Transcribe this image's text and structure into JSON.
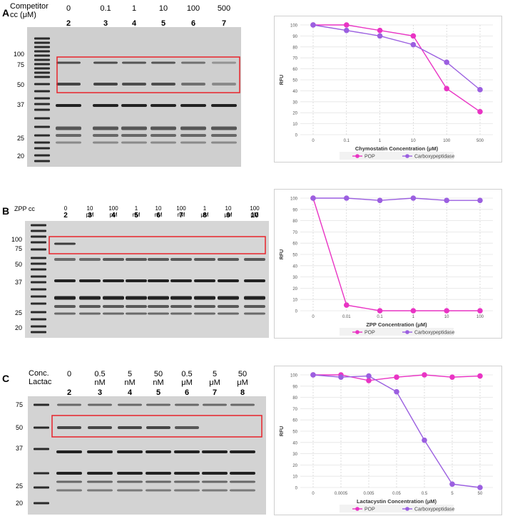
{
  "panels": [
    {
      "letter": "A",
      "header_label": [
        "Competitor",
        "cc (μM)"
      ],
      "column_labels": [
        [
          "0"
        ],
        [
          "0.1"
        ],
        [
          "1"
        ],
        [
          "10"
        ],
        [
          "100"
        ],
        [
          "500"
        ]
      ],
      "lane_numbers": [
        "2",
        "3",
        "4",
        "5",
        "6",
        "7"
      ],
      "mw_markers": [
        "100",
        "75",
        "50",
        "37",
        "25",
        "20"
      ],
      "highlight_color": "#e8232a"
    },
    {
      "letter": "B",
      "header_label": [
        "ZPP cc"
      ],
      "column_labels": [
        [
          "0"
        ],
        [
          "10",
          "pM"
        ],
        [
          "100",
          "pM"
        ],
        [
          "1",
          "nM"
        ],
        [
          "10",
          "nM"
        ],
        [
          "100",
          "nM"
        ],
        [
          "1",
          "μM"
        ],
        [
          "10",
          "μM"
        ],
        [
          "100",
          "μM"
        ]
      ],
      "lane_numbers": [
        "2",
        "3",
        "4",
        "5",
        "6",
        "7",
        "8",
        "9",
        "10"
      ],
      "mw_markers": [
        "100",
        "75",
        "50",
        "37",
        "25",
        "20"
      ],
      "highlight_color": "#e8232a"
    },
    {
      "letter": "C",
      "header_label": [
        "Conc.",
        "Lactac"
      ],
      "column_labels": [
        [
          "0"
        ],
        [
          "0.5",
          "nM"
        ],
        [
          "5",
          "nM"
        ],
        [
          "50",
          "nM"
        ],
        [
          "0.5",
          "μM"
        ],
        [
          "5",
          "μM"
        ],
        [
          "50",
          "μM"
        ]
      ],
      "lane_numbers": [
        "2",
        "3",
        "4",
        "5",
        "6",
        "7",
        "8"
      ],
      "mw_markers": [
        "75",
        "50",
        "37",
        "25",
        "20"
      ],
      "highlight_color": "#e8232a"
    }
  ],
  "chart_data": [
    {
      "type": "line",
      "categories": [
        "0",
        "0.1",
        "1",
        "10",
        "100",
        "500"
      ],
      "xlabel": "Chymostatin Concentration (μM)",
      "ylabel": "RFU",
      "ylim": [
        0,
        100
      ],
      "yticks": [
        "0",
        "10",
        "20",
        "30",
        "40",
        "50",
        "60",
        "70",
        "80",
        "90",
        "100"
      ],
      "grid": true,
      "legend": "bottom",
      "series": [
        {
          "name": "POP",
          "color": "#e934c4",
          "values": [
            100,
            100,
            95,
            90,
            42,
            21
          ]
        },
        {
          "name": "Carboxypeptidase",
          "color": "#9b5fe0",
          "values": [
            100,
            95,
            90,
            82,
            66,
            41
          ]
        }
      ]
    },
    {
      "type": "line",
      "categories": [
        "0",
        "0.01",
        "0.1",
        "1",
        "10",
        "100"
      ],
      "xlabel": "ZPP Concentration (μM)",
      "ylabel": "RFU",
      "ylim": [
        0,
        100
      ],
      "yticks": [
        "0",
        "10",
        "20",
        "30",
        "40",
        "50",
        "60",
        "70",
        "80",
        "90",
        "100"
      ],
      "grid": true,
      "legend": "bottom",
      "series": [
        {
          "name": "POP",
          "color": "#e934c4",
          "values": [
            100,
            5,
            0,
            0,
            0,
            0
          ]
        },
        {
          "name": "Carboxypeptidase",
          "color": "#9b5fe0",
          "values": [
            100,
            100,
            98,
            100,
            98,
            98
          ]
        }
      ]
    },
    {
      "type": "line",
      "categories": [
        "0",
        "0.0005",
        "0.005",
        "0.05",
        "0.5",
        "5",
        "50"
      ],
      "xlabel": "Lactacystin Concentration (μM)",
      "ylabel": "RFU",
      "ylim": [
        0,
        100
      ],
      "yticks": [
        "0",
        "10",
        "20",
        "30",
        "40",
        "50",
        "60",
        "70",
        "80",
        "90",
        "100"
      ],
      "grid": true,
      "legend": "bottom",
      "series": [
        {
          "name": "POP",
          "color": "#e934c4",
          "values": [
            100,
            100,
            95,
            98,
            100,
            98,
            99
          ]
        },
        {
          "name": "Carboxypeptidase",
          "color": "#9b5fe0",
          "values": [
            100,
            98,
            99,
            85,
            42,
            3,
            0
          ]
        }
      ]
    }
  ]
}
